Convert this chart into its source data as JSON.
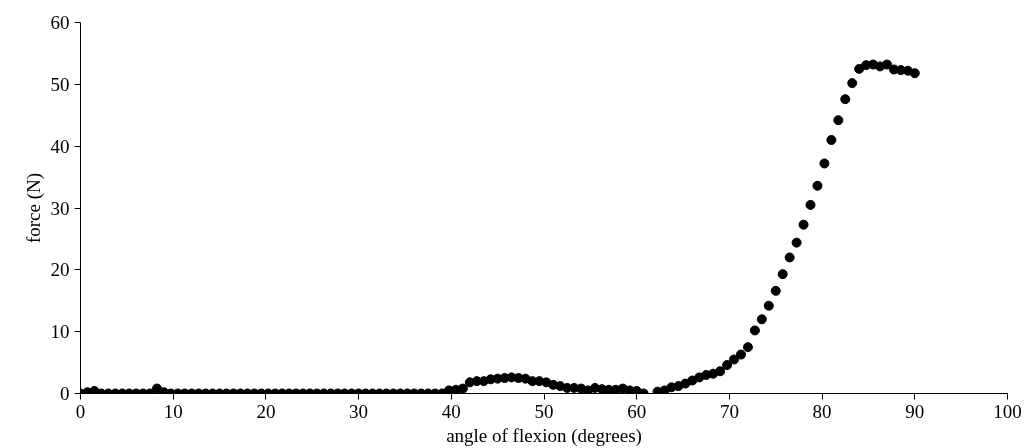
{
  "chart_data": {
    "type": "scatter",
    "xlabel": "angle of flexion (degrees)",
    "ylabel": "force (N)",
    "xlim": [
      0,
      100
    ],
    "xticks": [
      0,
      10,
      20,
      30,
      40,
      50,
      60,
      70,
      80,
      90,
      100
    ],
    "ylim": [
      0,
      60
    ],
    "yticks": [
      0,
      10,
      20,
      30,
      40,
      50,
      60
    ],
    "grid": false,
    "marker": "circle",
    "series": [
      {
        "color": "#000000",
        "x": [
          0,
          0.75,
          1.5,
          2.25,
          3,
          3.75,
          4.5,
          5.25,
          6,
          6.75,
          7.5,
          8.25,
          9,
          9.75,
          10.5,
          11.25,
          12,
          12.75,
          13.5,
          14.25,
          15,
          15.75,
          16.5,
          17.25,
          18,
          18.75,
          19.5,
          20.25,
          21,
          21.75,
          22.5,
          23.25,
          24,
          24.75,
          25.5,
          26.25,
          27,
          27.75,
          28.5,
          29.25,
          30,
          30.75,
          31.5,
          32.25,
          33,
          33.75,
          34.5,
          35.25,
          36,
          36.75,
          37.5,
          38.25,
          39,
          39.75,
          40.5,
          41.25,
          42,
          42.75,
          43.5,
          44.25,
          45,
          45.75,
          46.5,
          47.25,
          48,
          48.75,
          49.5,
          50.25,
          51,
          51.75,
          52.5,
          53.25,
          54,
          54.75,
          55.5,
          56.25,
          57,
          57.75,
          58.5,
          59.25,
          60,
          60.75,
          61.5,
          62.25,
          63,
          63.75,
          64.5,
          65.25,
          66,
          66.75,
          67.5,
          68.25,
          69,
          69.75,
          70.5,
          71.25,
          72,
          72.75,
          73.5,
          74.25,
          75,
          75.75,
          76.5,
          77.25,
          78,
          78.75,
          79.5,
          80.25,
          81,
          81.75,
          82.5,
          83.25,
          84,
          84.75,
          85.5,
          86.25,
          87,
          87.75,
          88.5,
          89.25,
          90
        ],
        "values": [
          0,
          0.2,
          0.4,
          0,
          0,
          0,
          0,
          0,
          0,
          0,
          0,
          0.8,
          0.2,
          0,
          0,
          0,
          0,
          0,
          0,
          0,
          0,
          0,
          0,
          0,
          0,
          0,
          0,
          0,
          0,
          0,
          0,
          0,
          0,
          0,
          0,
          0,
          0,
          0,
          0,
          0,
          0,
          0,
          0,
          0,
          0,
          0,
          0,
          0,
          0,
          0,
          0,
          0,
          0,
          0.5,
          0.6,
          0.8,
          1.8,
          2,
          2,
          2.3,
          2.4,
          2.5,
          2.6,
          2.5,
          2.4,
          2,
          2,
          1.8,
          1.4,
          1.2,
          0.9,
          0.9,
          0.8,
          0.5,
          0.9,
          0.7,
          0.6,
          0.6,
          0.8,
          0.5,
          0.4,
          0,
          null,
          0.3,
          0.5,
          1,
          1.2,
          1.6,
          2.1,
          2.6,
          3,
          3.2,
          3.6,
          4.6,
          5.5,
          6.3,
          7.5,
          10.2,
          12,
          14.2,
          16.6,
          19.3,
          22,
          24.4,
          27.3,
          30.5,
          33.6,
          37.2,
          41,
          44.2,
          47.6,
          50.2,
          52.5,
          53.1,
          53.2,
          52.9,
          53.2,
          52.4,
          52.3,
          52.2,
          51.8
        ]
      }
    ]
  }
}
